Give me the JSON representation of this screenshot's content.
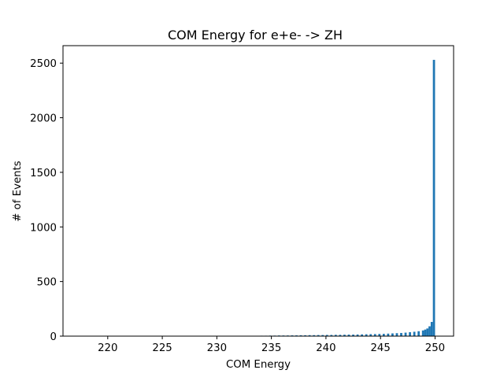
{
  "chart_data": {
    "type": "bar",
    "title": "COM Energy for e+e- -> ZH",
    "xlabel": "COM Energy",
    "ylabel": "# of Events",
    "xlim": [
      215.9,
      251.7
    ],
    "ylim": [
      0,
      2660
    ],
    "grid": false,
    "legend": "none",
    "color": "#1f77b4",
    "xticks": [
      220,
      225,
      230,
      235,
      240,
      245,
      250
    ],
    "yticks": [
      0,
      500,
      1000,
      1500,
      2000,
      2500
    ],
    "xtick_labels": [
      "220",
      "225",
      "230",
      "235",
      "240",
      "245",
      "250"
    ],
    "ytick_labels": [
      "0",
      "500",
      "1000",
      "1500",
      "2000",
      "2500"
    ],
    "bin_width": 0.2,
    "x": [
      217.0,
      225.0,
      229.0,
      231.0,
      232.0,
      232.8,
      233.6,
      234.0,
      234.4,
      234.8,
      235.2,
      235.6,
      236.0,
      236.4,
      236.8,
      237.2,
      237.6,
      238.0,
      238.4,
      238.8,
      239.2,
      239.6,
      240.0,
      240.4,
      240.8,
      241.2,
      241.6,
      242.0,
      242.4,
      242.8,
      243.2,
      243.6,
      244.0,
      244.4,
      244.8,
      245.2,
      245.6,
      246.0,
      246.4,
      246.8,
      247.2,
      247.6,
      248.0,
      248.4,
      248.8,
      249.0,
      249.2,
      249.4,
      249.6,
      249.8
    ],
    "values": [
      1,
      1,
      1,
      2,
      2,
      3,
      3,
      4,
      4,
      5,
      5,
      6,
      6,
      6,
      7,
      7,
      8,
      8,
      9,
      9,
      10,
      10,
      11,
      11,
      12,
      12,
      13,
      14,
      14,
      15,
      16,
      17,
      18,
      19,
      20,
      21,
      23,
      25,
      27,
      29,
      32,
      36,
      40,
      45,
      52,
      60,
      70,
      90,
      130,
      2530
    ]
  }
}
